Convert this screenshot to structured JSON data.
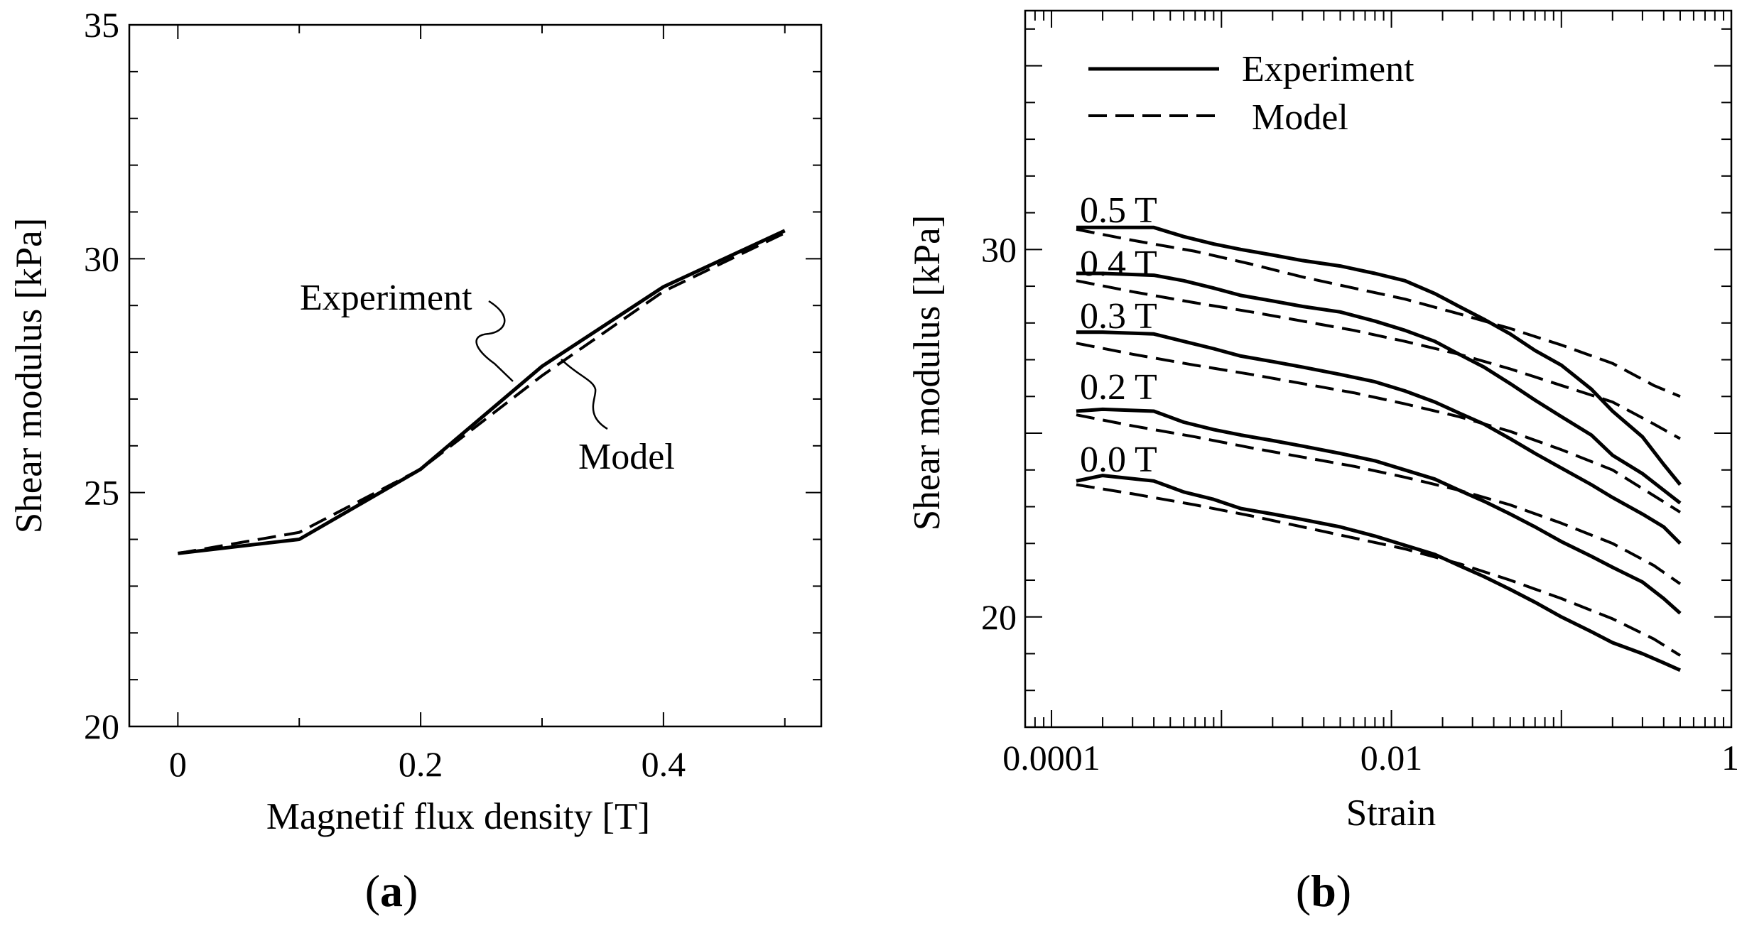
{
  "chart_data": [
    {
      "type": "line",
      "panel": "(a)",
      "xlabel": "Magnetif flux density [T]",
      "ylabel": "Shear modulus [kPa]",
      "xlim": [
        -0.04,
        0.53
      ],
      "ylim": [
        20,
        35
      ],
      "xticks": [
        0,
        0.2,
        0.4
      ],
      "xtick_labels": [
        "0",
        "0.2",
        "0.4"
      ],
      "yticks": [
        20,
        25,
        30,
        35
      ],
      "ytick_labels": [
        "20",
        "25",
        "30",
        "35"
      ],
      "x": [
        0,
        0.1,
        0.2,
        0.3,
        0.4,
        0.5
      ],
      "series": [
        {
          "name": "Experiment",
          "style": "solid",
          "values": [
            23.7,
            24.0,
            25.5,
            27.7,
            29.4,
            30.6
          ]
        },
        {
          "name": "Model",
          "style": "dashed",
          "values": [
            23.7,
            24.15,
            25.5,
            27.5,
            29.3,
            30.55
          ]
        }
      ],
      "annotations": [
        "Experiment",
        "Model"
      ]
    },
    {
      "type": "line",
      "panel": "(b)",
      "xscale": "log",
      "xlabel": "Strain",
      "ylabel": "Shear modulus [kPa]",
      "xlim": [
        7e-05,
        1
      ],
      "ylim": [
        17,
        36.5
      ],
      "xticks": [
        0.0001,
        0.01,
        1
      ],
      "xtick_labels": [
        "0.0001",
        "0.01",
        "1"
      ],
      "yticks": [
        20,
        30
      ],
      "ytick_labels": [
        "20",
        "30"
      ],
      "legend": {
        "position": "top-left",
        "entries": [
          {
            "label": "Experiment",
            "style": "solid"
          },
          {
            "label": "Model",
            "style": "dashed"
          }
        ]
      },
      "curve_labels": [
        "0.5 T",
        "0.4 T",
        "0.3 T",
        "0.2 T",
        "0.0 T"
      ],
      "series": [
        {
          "name": "0.5 T Experiment",
          "style": "solid",
          "x": [
            0.00014,
            0.0002,
            0.0004,
            0.0006,
            0.0009,
            0.0013,
            0.002,
            0.003,
            0.005,
            0.008,
            0.012,
            0.018,
            0.025,
            0.035,
            0.05,
            0.07,
            0.1,
            0.15,
            0.2,
            0.3,
            0.4,
            0.5
          ],
          "values": [
            30.6,
            30.6,
            30.6,
            30.35,
            30.15,
            30.0,
            29.85,
            29.7,
            29.55,
            29.35,
            29.15,
            28.8,
            28.45,
            28.1,
            27.7,
            27.25,
            26.85,
            26.2,
            25.6,
            24.9,
            24.15,
            23.6
          ]
        },
        {
          "name": "0.5 T Model",
          "style": "dashed",
          "x": [
            0.00014,
            0.0003,
            0.0007,
            0.0015,
            0.003,
            0.006,
            0.012,
            0.025,
            0.05,
            0.1,
            0.2,
            0.35,
            0.5
          ],
          "values": [
            30.55,
            30.25,
            29.95,
            29.6,
            29.25,
            28.95,
            28.65,
            28.25,
            27.85,
            27.4,
            26.9,
            26.3,
            26.0
          ]
        },
        {
          "name": "0.4 T Experiment",
          "style": "solid",
          "x": [
            0.00014,
            0.0002,
            0.0004,
            0.0006,
            0.0009,
            0.0013,
            0.002,
            0.003,
            0.005,
            0.008,
            0.012,
            0.018,
            0.025,
            0.035,
            0.05,
            0.07,
            0.1,
            0.15,
            0.2,
            0.3,
            0.4,
            0.5
          ],
          "values": [
            29.35,
            29.35,
            29.3,
            29.15,
            28.95,
            28.75,
            28.6,
            28.45,
            28.3,
            28.05,
            27.8,
            27.5,
            27.15,
            26.8,
            26.35,
            25.9,
            25.45,
            24.95,
            24.4,
            23.9,
            23.45,
            23.1
          ]
        },
        {
          "name": "0.4 T Model",
          "style": "dashed",
          "x": [
            0.00014,
            0.0003,
            0.0007,
            0.0015,
            0.003,
            0.006,
            0.012,
            0.025,
            0.05,
            0.1,
            0.2,
            0.35,
            0.5
          ],
          "values": [
            29.15,
            28.85,
            28.55,
            28.3,
            28.05,
            27.8,
            27.5,
            27.15,
            26.75,
            26.3,
            25.85,
            25.25,
            24.85
          ]
        },
        {
          "name": "0.3 T Experiment",
          "style": "solid",
          "x": [
            0.00014,
            0.0002,
            0.0004,
            0.0006,
            0.0009,
            0.0013,
            0.002,
            0.003,
            0.005,
            0.008,
            0.012,
            0.018,
            0.025,
            0.035,
            0.05,
            0.07,
            0.1,
            0.15,
            0.2,
            0.3,
            0.4,
            0.5
          ],
          "values": [
            27.75,
            27.75,
            27.7,
            27.5,
            27.3,
            27.1,
            26.95,
            26.8,
            26.6,
            26.4,
            26.15,
            25.85,
            25.55,
            25.25,
            24.85,
            24.45,
            24.05,
            23.6,
            23.25,
            22.8,
            22.45,
            22.0
          ]
        },
        {
          "name": "0.3 T Model",
          "style": "dashed",
          "x": [
            0.00014,
            0.0003,
            0.0007,
            0.0015,
            0.003,
            0.006,
            0.012,
            0.025,
            0.05,
            0.1,
            0.2,
            0.35,
            0.5
          ],
          "values": [
            27.45,
            27.15,
            26.85,
            26.6,
            26.35,
            26.1,
            25.8,
            25.45,
            25.05,
            24.55,
            24.0,
            23.3,
            22.85
          ]
        },
        {
          "name": "0.2 T Experiment",
          "style": "solid",
          "x": [
            0.00014,
            0.0002,
            0.0004,
            0.0006,
            0.0009,
            0.0013,
            0.002,
            0.003,
            0.005,
            0.008,
            0.012,
            0.018,
            0.025,
            0.035,
            0.05,
            0.07,
            0.1,
            0.15,
            0.2,
            0.3,
            0.4,
            0.5
          ],
          "values": [
            25.6,
            25.65,
            25.6,
            25.3,
            25.1,
            24.95,
            24.8,
            24.65,
            24.45,
            24.25,
            24.0,
            23.75,
            23.45,
            23.15,
            22.8,
            22.45,
            22.05,
            21.65,
            21.35,
            20.95,
            20.5,
            20.1
          ]
        },
        {
          "name": "0.2 T Model",
          "style": "dashed",
          "x": [
            0.00014,
            0.0003,
            0.0007,
            0.0015,
            0.003,
            0.006,
            0.012,
            0.025,
            0.05,
            0.1,
            0.2,
            0.35,
            0.5
          ],
          "values": [
            25.5,
            25.2,
            24.9,
            24.6,
            24.35,
            24.1,
            23.8,
            23.45,
            23.05,
            22.55,
            22.0,
            21.4,
            20.9
          ]
        },
        {
          "name": "0.0 T Experiment",
          "style": "solid",
          "x": [
            0.00014,
            0.0002,
            0.0004,
            0.0006,
            0.0009,
            0.0013,
            0.002,
            0.003,
            0.005,
            0.008,
            0.012,
            0.018,
            0.025,
            0.035,
            0.05,
            0.07,
            0.1,
            0.15,
            0.2,
            0.3,
            0.4,
            0.5
          ],
          "values": [
            23.7,
            23.85,
            23.7,
            23.4,
            23.2,
            22.95,
            22.8,
            22.65,
            22.45,
            22.2,
            21.95,
            21.7,
            21.4,
            21.1,
            20.75,
            20.4,
            20.0,
            19.6,
            19.3,
            19.0,
            18.75,
            18.55
          ]
        },
        {
          "name": "0.0 T Model",
          "style": "dashed",
          "x": [
            0.00014,
            0.0003,
            0.0007,
            0.0015,
            0.003,
            0.006,
            0.012,
            0.025,
            0.05,
            0.1,
            0.2,
            0.35,
            0.5
          ],
          "values": [
            23.6,
            23.35,
            23.05,
            22.75,
            22.45,
            22.15,
            21.85,
            21.45,
            21.0,
            20.5,
            19.95,
            19.4,
            18.95
          ]
        }
      ]
    }
  ]
}
